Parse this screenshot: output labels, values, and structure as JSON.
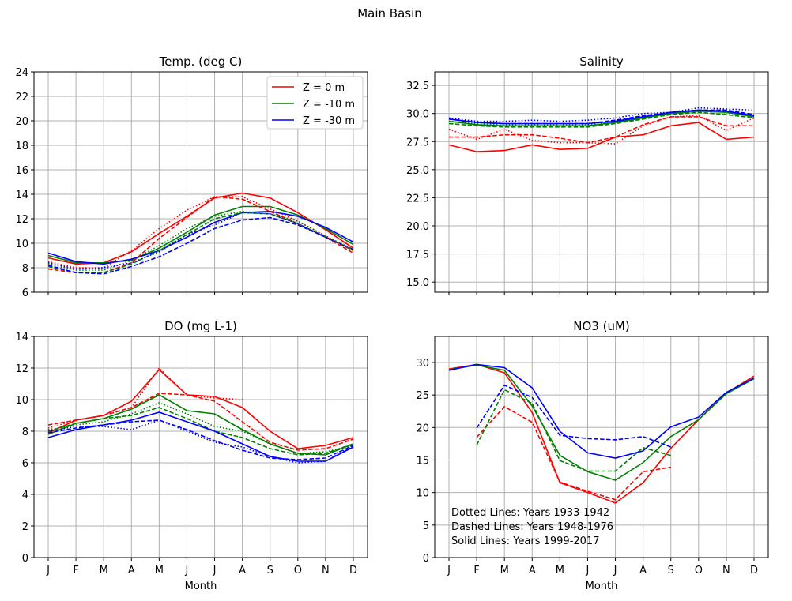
{
  "figure_title": "Main Basin",
  "chart_data": [
    {
      "type": "line",
      "title": "Temp. (deg C)",
      "xlabel": "",
      "categories": [
        "J",
        "F",
        "M",
        "A",
        "M",
        "J",
        "J",
        "A",
        "S",
        "O",
        "N",
        "D"
      ],
      "ylim": [
        6,
        24
      ],
      "yticks": [
        6,
        8,
        10,
        12,
        14,
        16,
        18,
        20,
        22,
        24
      ],
      "grid": true,
      "show_xticklabels": false,
      "legend": {
        "placement": "top-right",
        "entries": [
          {
            "label": "Z = 0 m",
            "color": "#ff0000"
          },
          {
            "label": "Z = -10 m",
            "color": "#008000"
          },
          {
            "label": "Z = -30 m",
            "color": "#0000ff"
          }
        ]
      },
      "series": [
        {
          "depth": "Z = 0 m",
          "style": "solid",
          "color": "#ff0000",
          "values": [
            8.8,
            8.3,
            8.4,
            9.3,
            10.8,
            12.2,
            13.7,
            14.1,
            13.7,
            12.5,
            11.1,
            9.6
          ]
        },
        {
          "depth": "Z = -10 m",
          "style": "solid",
          "color": "#008000",
          "values": [
            9.0,
            8.4,
            8.4,
            8.6,
            9.6,
            10.9,
            12.3,
            13.0,
            13.0,
            12.3,
            11.2,
            9.9
          ]
        },
        {
          "depth": "Z = -30 m",
          "style": "solid",
          "color": "#0000ff",
          "values": [
            9.2,
            8.5,
            8.3,
            8.7,
            9.4,
            10.5,
            11.7,
            12.5,
            12.6,
            12.2,
            11.3,
            10.1
          ]
        },
        {
          "depth": "Z = 0 m",
          "style": "dashed",
          "color": "#ff0000",
          "values": [
            7.9,
            7.6,
            7.6,
            8.4,
            10.4,
            12.1,
            13.8,
            13.6,
            12.6,
            11.6,
            10.5,
            9.2
          ]
        },
        {
          "depth": "Z = -10 m",
          "style": "dashed",
          "color": "#008000",
          "values": [
            8.1,
            7.6,
            7.6,
            8.3,
            9.4,
            10.7,
            12.0,
            12.5,
            12.4,
            11.6,
            10.5,
            9.4
          ]
        },
        {
          "depth": "Z = -30 m",
          "style": "dashed",
          "color": "#0000ff",
          "values": [
            8.2,
            7.6,
            7.5,
            8.1,
            8.9,
            10.0,
            11.2,
            11.9,
            12.1,
            11.5,
            10.5,
            9.5
          ]
        },
        {
          "depth": "Z = 0 m",
          "style": "dotted",
          "color": "#ff0000",
          "values": [
            8.5,
            8.0,
            8.0,
            9.4,
            11.2,
            12.7,
            13.8,
            13.8,
            12.8,
            11.8,
            10.6,
            9.4
          ]
        },
        {
          "depth": "Z = -10 m",
          "style": "dotted",
          "color": "#008000",
          "values": [
            8.3,
            7.8,
            7.8,
            8.6,
            9.8,
            11.2,
            12.2,
            12.6,
            12.4,
            11.8,
            10.6,
            9.5
          ]
        },
        {
          "depth": "Z = -30 m",
          "style": "dotted",
          "color": "#0000ff",
          "values": [
            8.4,
            7.9,
            8.0,
            8.4,
            9.3,
            10.7,
            11.5,
            12.5,
            12.4,
            11.6,
            10.5,
            9.5
          ]
        }
      ]
    },
    {
      "type": "line",
      "title": "Salinity",
      "xlabel": "",
      "categories": [
        "J",
        "F",
        "M",
        "A",
        "M",
        "J",
        "J",
        "A",
        "S",
        "O",
        "N",
        "D"
      ],
      "ylim": [
        14.1,
        33.7
      ],
      "yticks": [
        15.0,
        17.5,
        20.0,
        22.5,
        25.0,
        27.5,
        30.0,
        32.5
      ],
      "grid": true,
      "show_xticklabels": false,
      "series": [
        {
          "depth": "Z = 0 m",
          "style": "solid",
          "color": "#ff0000",
          "values": [
            27.2,
            26.6,
            26.7,
            27.2,
            26.8,
            26.9,
            27.9,
            28.1,
            28.9,
            29.2,
            27.7,
            27.9
          ]
        },
        {
          "depth": "Z = 0 m",
          "style": "dashed",
          "color": "#ff0000",
          "values": [
            27.9,
            27.9,
            28.1,
            28.1,
            27.8,
            27.4,
            27.9,
            29.0,
            29.7,
            29.7,
            28.9,
            28.9
          ]
        },
        {
          "depth": "Z = 0 m",
          "style": "dotted",
          "color": "#ff0000",
          "values": [
            28.6,
            27.7,
            28.6,
            27.6,
            27.4,
            27.4,
            27.3,
            28.9,
            29.7,
            29.8,
            28.5,
            29.6
          ]
        },
        {
          "depth": "Z = -10 m",
          "style": "solid",
          "color": "#008000",
          "values": [
            29.3,
            29.0,
            28.9,
            28.9,
            28.9,
            28.9,
            29.2,
            29.6,
            30.0,
            30.2,
            30.1,
            29.7
          ]
        },
        {
          "depth": "Z = -10 m",
          "style": "dashed",
          "color": "#008000",
          "values": [
            29.1,
            28.9,
            28.8,
            28.8,
            28.8,
            28.8,
            29.1,
            29.5,
            29.9,
            30.1,
            29.9,
            29.6
          ]
        },
        {
          "depth": "Z = -10 m",
          "style": "dotted",
          "color": "#008000",
          "values": [
            29.3,
            29.1,
            29.0,
            29.0,
            29.0,
            29.0,
            29.3,
            29.7,
            30.0,
            30.3,
            30.1,
            29.8
          ]
        },
        {
          "depth": "Z = -30 m",
          "style": "solid",
          "color": "#0000ff",
          "values": [
            29.5,
            29.2,
            29.1,
            29.1,
            29.1,
            29.1,
            29.3,
            29.7,
            30.1,
            30.3,
            30.2,
            29.8
          ]
        },
        {
          "depth": "Z = -30 m",
          "style": "dashed",
          "color": "#0000ff",
          "values": [
            29.5,
            29.2,
            29.1,
            29.1,
            29.1,
            29.1,
            29.4,
            29.8,
            30.1,
            30.3,
            30.3,
            29.9
          ]
        },
        {
          "depth": "Z = -30 m",
          "style": "dotted",
          "color": "#0000ff",
          "values": [
            29.6,
            29.3,
            29.3,
            29.4,
            29.3,
            29.4,
            29.6,
            30.0,
            30.1,
            30.5,
            30.4,
            30.3
          ]
        }
      ]
    },
    {
      "type": "line",
      "title": "DO (mg L-1)",
      "xlabel": "Month",
      "categories": [
        "J",
        "F",
        "M",
        "A",
        "M",
        "J",
        "J",
        "A",
        "S",
        "O",
        "N",
        "D"
      ],
      "ylim": [
        0,
        14
      ],
      "yticks": [
        0,
        2,
        4,
        6,
        8,
        10,
        12,
        14
      ],
      "grid": true,
      "show_xticklabels": true,
      "series": [
        {
          "depth": "Z = 0 m",
          "style": "solid",
          "color": "#ff0000",
          "values": [
            7.9,
            8.7,
            9.0,
            9.9,
            11.9,
            10.3,
            10.2,
            9.5,
            8.0,
            6.9,
            7.1,
            7.6
          ]
        },
        {
          "depth": "Z = 0 m",
          "style": "dashed",
          "color": "#ff0000",
          "values": [
            8.4,
            8.7,
            9.0,
            9.5,
            10.4,
            10.3,
            9.9,
            8.6,
            7.3,
            6.8,
            6.9,
            7.5
          ]
        },
        {
          "depth": "Z = 0 m",
          "style": "dotted",
          "color": "#ff0000",
          "values": [
            8.2,
            8.7,
            9.0,
            9.5,
            12.0,
            10.3,
            10.1,
            10.0,
            null,
            null,
            null,
            null
          ]
        },
        {
          "depth": "Z = -10 m",
          "style": "solid",
          "color": "#008000",
          "values": [
            7.8,
            8.5,
            8.8,
            9.4,
            10.3,
            9.3,
            9.1,
            8.1,
            7.2,
            6.6,
            6.5,
            7.2
          ]
        },
        {
          "depth": "Z = -10 m",
          "style": "dashed",
          "color": "#008000",
          "values": [
            8.0,
            8.5,
            8.8,
            9.0,
            9.5,
            8.8,
            8.0,
            7.6,
            6.9,
            6.5,
            6.6,
            7.2
          ]
        },
        {
          "depth": "Z = -10 m",
          "style": "dotted",
          "color": "#008000",
          "values": [
            8.1,
            8.4,
            8.6,
            9.1,
            9.8,
            9.1,
            8.3,
            8.0,
            7.2,
            6.6,
            6.7,
            7.1
          ]
        },
        {
          "depth": "Z = -30 m",
          "style": "solid",
          "color": "#0000ff",
          "values": [
            7.6,
            8.1,
            8.4,
            8.7,
            9.2,
            8.6,
            8.0,
            7.2,
            6.4,
            6.1,
            6.1,
            7.0
          ]
        },
        {
          "depth": "Z = -30 m",
          "style": "dashed",
          "color": "#0000ff",
          "values": [
            7.9,
            8.2,
            8.4,
            8.6,
            8.7,
            8.1,
            7.4,
            6.8,
            6.3,
            6.2,
            6.3,
            7.1
          ]
        },
        {
          "depth": "Z = -30 m",
          "style": "dotted",
          "color": "#0000ff",
          "values": [
            8.0,
            8.3,
            8.3,
            8.1,
            8.7,
            8.0,
            7.3,
            7.0,
            6.4,
            6.0,
            6.1,
            7.1
          ]
        }
      ]
    },
    {
      "type": "line",
      "title": "NO3 (uM)",
      "xlabel": "Month",
      "categories": [
        "J",
        "F",
        "M",
        "A",
        "M",
        "J",
        "J",
        "A",
        "S",
        "O",
        "N",
        "D"
      ],
      "ylim": [
        0,
        34
      ],
      "yticks": [
        0,
        5,
        10,
        15,
        20,
        25,
        30
      ],
      "grid": true,
      "show_xticklabels": true,
      "annotations": [
        "Dotted Lines: Years 1933-1942",
        "Dashed Lines: Years 1948-1976",
        "Solid Lines: Years 1999-2017"
      ],
      "series": [
        {
          "depth": "Z = 0 m",
          "style": "solid",
          "color": "#ff0000",
          "values": [
            29.0,
            29.7,
            28.4,
            22.3,
            11.5,
            10.0,
            8.4,
            11.5,
            16.8,
            21.2,
            25.3,
            27.9
          ]
        },
        {
          "depth": "Z = -10 m",
          "style": "solid",
          "color": "#008000",
          "values": [
            28.9,
            29.6,
            28.8,
            23.3,
            15.7,
            13.2,
            11.9,
            14.6,
            18.6,
            21.2,
            25.2,
            27.5
          ]
        },
        {
          "depth": "Z = -30 m",
          "style": "solid",
          "color": "#0000ff",
          "values": [
            28.8,
            29.7,
            29.2,
            26.1,
            19.4,
            16.1,
            15.3,
            16.4,
            20.1,
            21.6,
            25.4,
            27.6
          ]
        },
        {
          "depth": "Z = 0 m",
          "style": "dashed",
          "color": "#ff0000",
          "values": [
            null,
            18.5,
            23.2,
            20.8,
            11.6,
            10.2,
            8.9,
            13.2,
            13.9,
            null,
            null,
            null
          ]
        },
        {
          "depth": "Z = -10 m",
          "style": "dashed",
          "color": "#008000",
          "values": [
            null,
            17.3,
            25.8,
            23.7,
            14.9,
            13.3,
            13.3,
            16.9,
            15.7,
            null,
            null,
            null
          ]
        },
        {
          "depth": "Z = -30 m",
          "style": "dashed",
          "color": "#0000ff",
          "values": [
            null,
            19.9,
            26.5,
            24.6,
            18.8,
            18.3,
            18.1,
            18.6,
            17.0,
            null,
            null,
            null
          ]
        }
      ]
    }
  ]
}
